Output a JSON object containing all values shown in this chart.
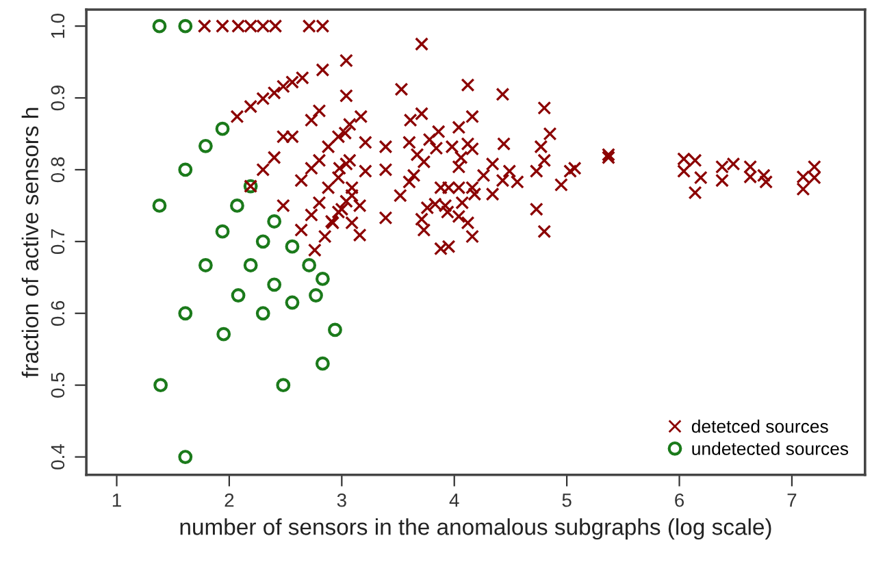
{
  "chart_data": {
    "type": "scatter",
    "xlabel": "number of sensors in the anomalous subgraphs (log scale)",
    "ylabel": "fraction of active sensors h",
    "xlim": [
      0.73,
      7.65
    ],
    "ylim": [
      0.375,
      1.023
    ],
    "xticks": [
      1,
      2,
      3,
      4,
      5,
      6,
      7
    ],
    "yticks": [
      0.4,
      0.5,
      0.6,
      0.7,
      0.8,
      0.9,
      {
        "value": 1,
        "label": "1.0"
      }
    ],
    "grid": false,
    "legend": "bottom right",
    "series": [
      {
        "name": "detetced sources",
        "color": "#8b0000",
        "marker": "cross",
        "x": [
          1.78,
          1.94,
          2.08,
          2.19,
          2.3,
          2.41,
          2.71,
          2.83,
          2.07,
          2.19,
          2.3,
          2.4,
          2.48,
          2.56,
          2.65,
          2.83,
          3.04,
          3.04,
          2.73,
          2.8,
          2.48,
          2.56,
          2.4,
          2.3,
          2.19,
          2.48,
          3.03,
          2.64,
          2.73,
          2.8,
          2.88,
          2.97,
          2.64,
          2.73,
          2.8,
          2.88,
          2.97,
          3.04,
          2.76,
          2.85,
          2.92,
          3.0,
          3.09,
          3.09,
          3.71,
          3.53,
          4.12,
          4.43,
          4.8,
          3.17,
          3.61,
          3.71,
          4.16,
          4.85,
          3.07,
          3.86,
          4.04,
          3.21,
          3.39,
          3.6,
          3.78,
          3.84,
          3.98,
          4.12,
          4.16,
          4.44,
          4.77,
          3.67,
          4.06,
          3.07,
          2.98,
          3.21,
          3.39,
          3.73,
          4.04,
          4.34,
          4.8,
          4.73,
          5.03,
          4.26,
          4.49,
          3.64,
          3.6,
          4.43,
          4.56,
          4.95,
          3.09,
          3.52,
          3.88,
          3.95,
          4.04,
          4.16,
          4.18,
          4.34,
          3.04,
          3.16,
          3.76,
          3.83,
          3.92,
          4.07,
          2.97,
          2.91,
          3.39,
          3.71,
          3.94,
          4.04,
          4.12,
          4.73,
          3.16,
          3.73,
          3.88,
          3.95,
          4.16,
          4.8,
          5.37,
          5.37,
          6.04,
          6.14,
          6.04,
          6.19,
          6.14,
          6.38,
          6.48,
          6.38,
          6.63,
          6.63,
          6.75,
          6.77,
          7.1,
          7.1,
          7.2,
          7.2,
          5.07
        ],
        "values": [
          1.0,
          1.0,
          1.0,
          1.0,
          1.0,
          1.0,
          1.0,
          1.0,
          0.874,
          0.888,
          0.899,
          0.907,
          0.916,
          0.922,
          0.928,
          0.939,
          0.952,
          0.903,
          0.869,
          0.882,
          0.846,
          0.846,
          0.817,
          0.8,
          0.777,
          0.75,
          0.851,
          0.785,
          0.802,
          0.813,
          0.832,
          0.846,
          0.716,
          0.737,
          0.754,
          0.775,
          0.789,
          0.808,
          0.688,
          0.707,
          0.726,
          0.745,
          0.764,
          0.726,
          0.975,
          0.912,
          0.918,
          0.905,
          0.886,
          0.874,
          0.869,
          0.878,
          0.874,
          0.85,
          0.863,
          0.853,
          0.859,
          0.838,
          0.832,
          0.838,
          0.842,
          0.83,
          0.832,
          0.836,
          0.829,
          0.836,
          0.832,
          0.821,
          0.817,
          0.813,
          0.802,
          0.798,
          0.8,
          0.811,
          0.804,
          0.808,
          0.813,
          0.798,
          0.798,
          0.792,
          0.798,
          0.792,
          0.783,
          0.785,
          0.783,
          0.779,
          0.775,
          0.764,
          0.775,
          0.775,
          0.775,
          0.775,
          0.766,
          0.766,
          0.756,
          0.75,
          0.747,
          0.752,
          0.75,
          0.754,
          0.741,
          0.728,
          0.733,
          0.731,
          0.741,
          0.735,
          0.726,
          0.745,
          0.709,
          0.716,
          0.69,
          0.693,
          0.707,
          0.714,
          0.817,
          0.821,
          0.815,
          0.813,
          0.798,
          0.789,
          0.768,
          0.804,
          0.808,
          0.785,
          0.804,
          0.79,
          0.792,
          0.783,
          0.79,
          0.773,
          0.804,
          0.789,
          0.802
        ]
      },
      {
        "name": "undetected sources",
        "color": "#1b7a1b",
        "marker": "circle",
        "x": [
          1.38,
          1.61,
          1.94,
          1.79,
          1.61,
          2.19,
          1.38,
          2.07,
          2.4,
          1.94,
          2.3,
          2.56,
          1.79,
          2.19,
          2.71,
          2.83,
          2.4,
          2.08,
          2.77,
          2.56,
          1.61,
          2.3,
          1.95,
          2.94,
          2.83,
          1.39,
          2.48,
          1.61
        ],
        "values": [
          1.0,
          1.0,
          0.857,
          0.833,
          0.8,
          0.777,
          0.75,
          0.75,
          0.728,
          0.714,
          0.7,
          0.693,
          0.667,
          0.667,
          0.667,
          0.648,
          0.64,
          0.625,
          0.625,
          0.615,
          0.6,
          0.6,
          0.571,
          0.577,
          0.53,
          0.5,
          0.5,
          0.4
        ]
      }
    ]
  }
}
